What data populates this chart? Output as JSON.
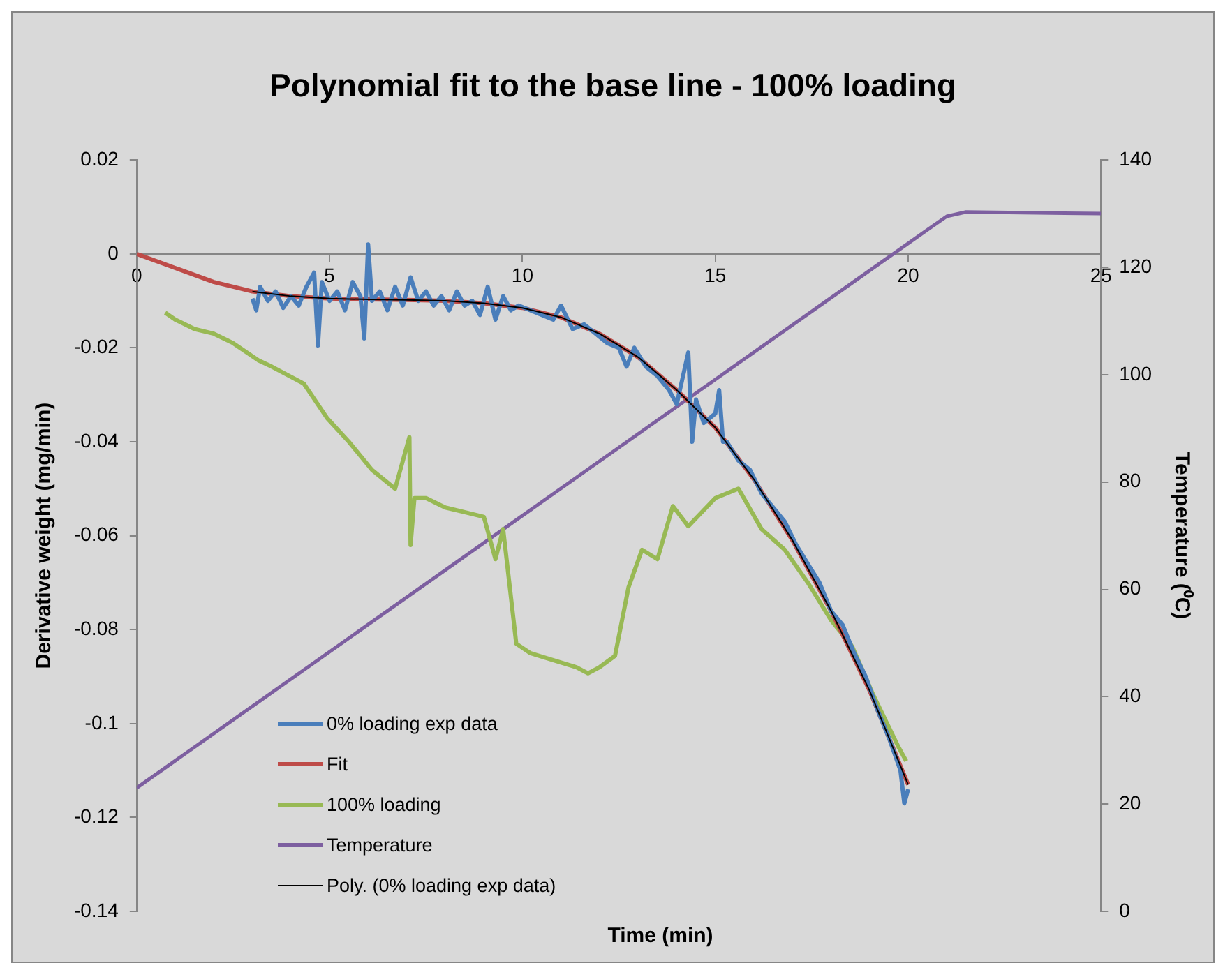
{
  "chart_data": {
    "type": "line",
    "title": "Polynomial fit to the base line - 100% loading",
    "xlabel": "Time (min)",
    "ylabel": "Derivative weight (mg/min)",
    "y2label": "Temperature (⁰C)",
    "xlim": [
      0,
      25
    ],
    "xticks": [
      0,
      5,
      10,
      15,
      20,
      25
    ],
    "ylim": [
      -0.14,
      0.02
    ],
    "yticks": [
      -0.14,
      -0.12,
      -0.1,
      -0.08,
      -0.06,
      -0.04,
      -0.02,
      0,
      0.02
    ],
    "y2lim": [
      0,
      140
    ],
    "y2ticks": [
      0,
      20,
      40,
      60,
      80,
      100,
      120,
      140
    ],
    "grid": false,
    "legend": "bottom left",
    "marker": "none",
    "line_style": "solid",
    "series": [
      {
        "name": "0% loading exp data",
        "color": "#4a7ebb",
        "x": [
          3.0,
          3.1,
          3.2,
          3.4,
          3.6,
          3.8,
          4.0,
          4.2,
          4.4,
          4.6,
          4.7,
          4.8,
          5.0,
          5.2,
          5.4,
          5.6,
          5.8,
          5.9,
          6.0,
          6.1,
          6.3,
          6.5,
          6.7,
          6.9,
          7.1,
          7.3,
          7.5,
          7.7,
          7.9,
          8.1,
          8.3,
          8.5,
          8.7,
          8.9,
          9.1,
          9.3,
          9.5,
          9.7,
          9.9,
          10.2,
          10.5,
          10.8,
          11.0,
          11.3,
          11.6,
          11.9,
          12.2,
          12.5,
          12.7,
          12.9,
          13.2,
          13.5,
          13.8,
          14.0,
          14.3,
          14.4,
          14.5,
          14.7,
          15.0,
          15.1,
          15.2,
          15.3,
          15.6,
          15.9,
          16.2,
          16.5,
          16.8,
          17.1,
          17.4,
          17.7,
          18.0,
          18.3,
          18.6,
          18.9,
          19.2,
          19.5,
          19.8,
          19.9,
          20.0
        ],
        "values": [
          -0.0095,
          -0.012,
          -0.007,
          -0.01,
          -0.008,
          -0.0115,
          -0.009,
          -0.011,
          -0.007,
          -0.004,
          -0.0195,
          -0.006,
          -0.01,
          -0.008,
          -0.012,
          -0.006,
          -0.009,
          -0.018,
          0.002,
          -0.01,
          -0.008,
          -0.012,
          -0.007,
          -0.011,
          -0.005,
          -0.01,
          -0.008,
          -0.011,
          -0.009,
          -0.012,
          -0.008,
          -0.011,
          -0.01,
          -0.013,
          -0.007,
          -0.014,
          -0.009,
          -0.012,
          -0.011,
          -0.012,
          -0.013,
          -0.014,
          -0.011,
          -0.016,
          -0.015,
          -0.017,
          -0.019,
          -0.02,
          -0.024,
          -0.02,
          -0.024,
          -0.026,
          -0.029,
          -0.032,
          -0.021,
          -0.04,
          -0.031,
          -0.036,
          -0.034,
          -0.029,
          -0.04,
          -0.04,
          -0.044,
          -0.046,
          -0.051,
          -0.054,
          -0.057,
          -0.062,
          -0.066,
          -0.07,
          -0.076,
          -0.079,
          -0.085,
          -0.09,
          -0.097,
          -0.103,
          -0.11,
          -0.117,
          -0.114
        ]
      },
      {
        "name": "Fit",
        "color": "#be4b48",
        "x": [
          0,
          1,
          2,
          3,
          4,
          5,
          6,
          7,
          8,
          9,
          10,
          11,
          12,
          13,
          14,
          15,
          16,
          17,
          18,
          19,
          20
        ],
        "values": [
          0,
          -0.003,
          -0.006,
          -0.008,
          -0.009,
          -0.0095,
          -0.0097,
          -0.0098,
          -0.01,
          -0.0105,
          -0.0115,
          -0.0135,
          -0.017,
          -0.022,
          -0.029,
          -0.037,
          -0.048,
          -0.061,
          -0.076,
          -0.093,
          -0.113
        ]
      },
      {
        "name": "100% loading",
        "color": "#98b954",
        "x": [
          0.74,
          1.0,
          1.5,
          2.0,
          2.5,
          3.16,
          3.5,
          4.33,
          4.94,
          5.5,
          6.1,
          6.7,
          7.07,
          7.1,
          7.2,
          7.5,
          8.0,
          8.5,
          9.0,
          9.3,
          9.5,
          9.84,
          10.2,
          10.6,
          11.0,
          11.4,
          11.7,
          12.0,
          12.4,
          12.75,
          13.1,
          13.5,
          13.9,
          14.3,
          15.0,
          15.6,
          16.2,
          16.8,
          17.4,
          18.0,
          18.55,
          19.1,
          19.75,
          19.95
        ],
        "values": [
          -0.0125,
          -0.014,
          -0.016,
          -0.017,
          -0.019,
          -0.0227,
          -0.024,
          -0.0276,
          -0.035,
          -0.04,
          -0.046,
          -0.05,
          -0.039,
          -0.062,
          -0.052,
          -0.052,
          -0.054,
          -0.055,
          -0.056,
          -0.065,
          -0.0586,
          -0.083,
          -0.085,
          -0.086,
          -0.087,
          -0.088,
          -0.0893,
          -0.088,
          -0.0856,
          -0.071,
          -0.063,
          -0.065,
          -0.0537,
          -0.058,
          -0.052,
          -0.05,
          -0.0586,
          -0.063,
          -0.07,
          -0.078,
          -0.0836,
          -0.094,
          -0.105,
          -0.108
        ]
      },
      {
        "name": "Temperature",
        "color": "#7d5fa0",
        "axis": "y2",
        "x": [
          0,
          20.5,
          21,
          21.5,
          25
        ],
        "values": [
          23,
          127,
          129.5,
          130.3,
          130
        ]
      },
      {
        "name": "Poly. (0% loading exp data)",
        "color": "#000000",
        "x": [
          3,
          4,
          5,
          6,
          7,
          8,
          9,
          10,
          11,
          12,
          13,
          14,
          15,
          16,
          17,
          18,
          19,
          20
        ],
        "values": [
          -0.008,
          -0.009,
          -0.0095,
          -0.0097,
          -0.0098,
          -0.01,
          -0.0105,
          -0.0115,
          -0.0135,
          -0.017,
          -0.022,
          -0.029,
          -0.037,
          -0.048,
          -0.061,
          -0.076,
          -0.093,
          -0.113
        ]
      }
    ]
  }
}
